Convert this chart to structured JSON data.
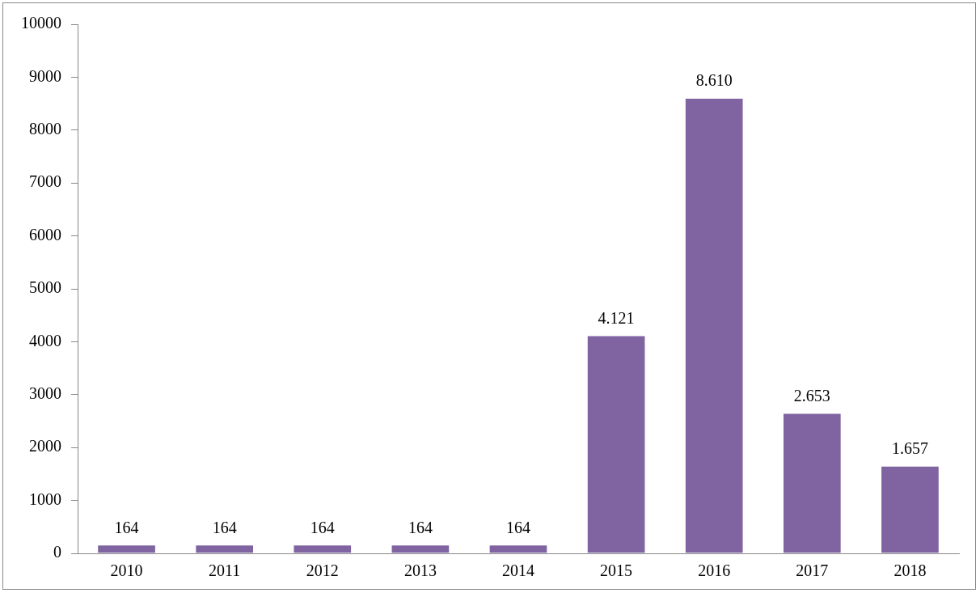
{
  "chart_data": {
    "type": "bar",
    "categories": [
      "2010",
      "2011",
      "2012",
      "2013",
      "2014",
      "2015",
      "2016",
      "2017",
      "2018"
    ],
    "values": [
      164,
      164,
      164,
      164,
      164,
      4121,
      8610,
      2653,
      1657
    ],
    "value_labels": [
      "164",
      "164",
      "164",
      "164",
      "164",
      "4.121",
      "8.610",
      "2.653",
      "1.657"
    ],
    "color": "#8064a2",
    "ylim": [
      0,
      10000
    ],
    "yticks": [
      0,
      1000,
      2000,
      3000,
      4000,
      5000,
      6000,
      7000,
      8000,
      9000,
      10000
    ],
    "grid": false,
    "legend": false
  }
}
